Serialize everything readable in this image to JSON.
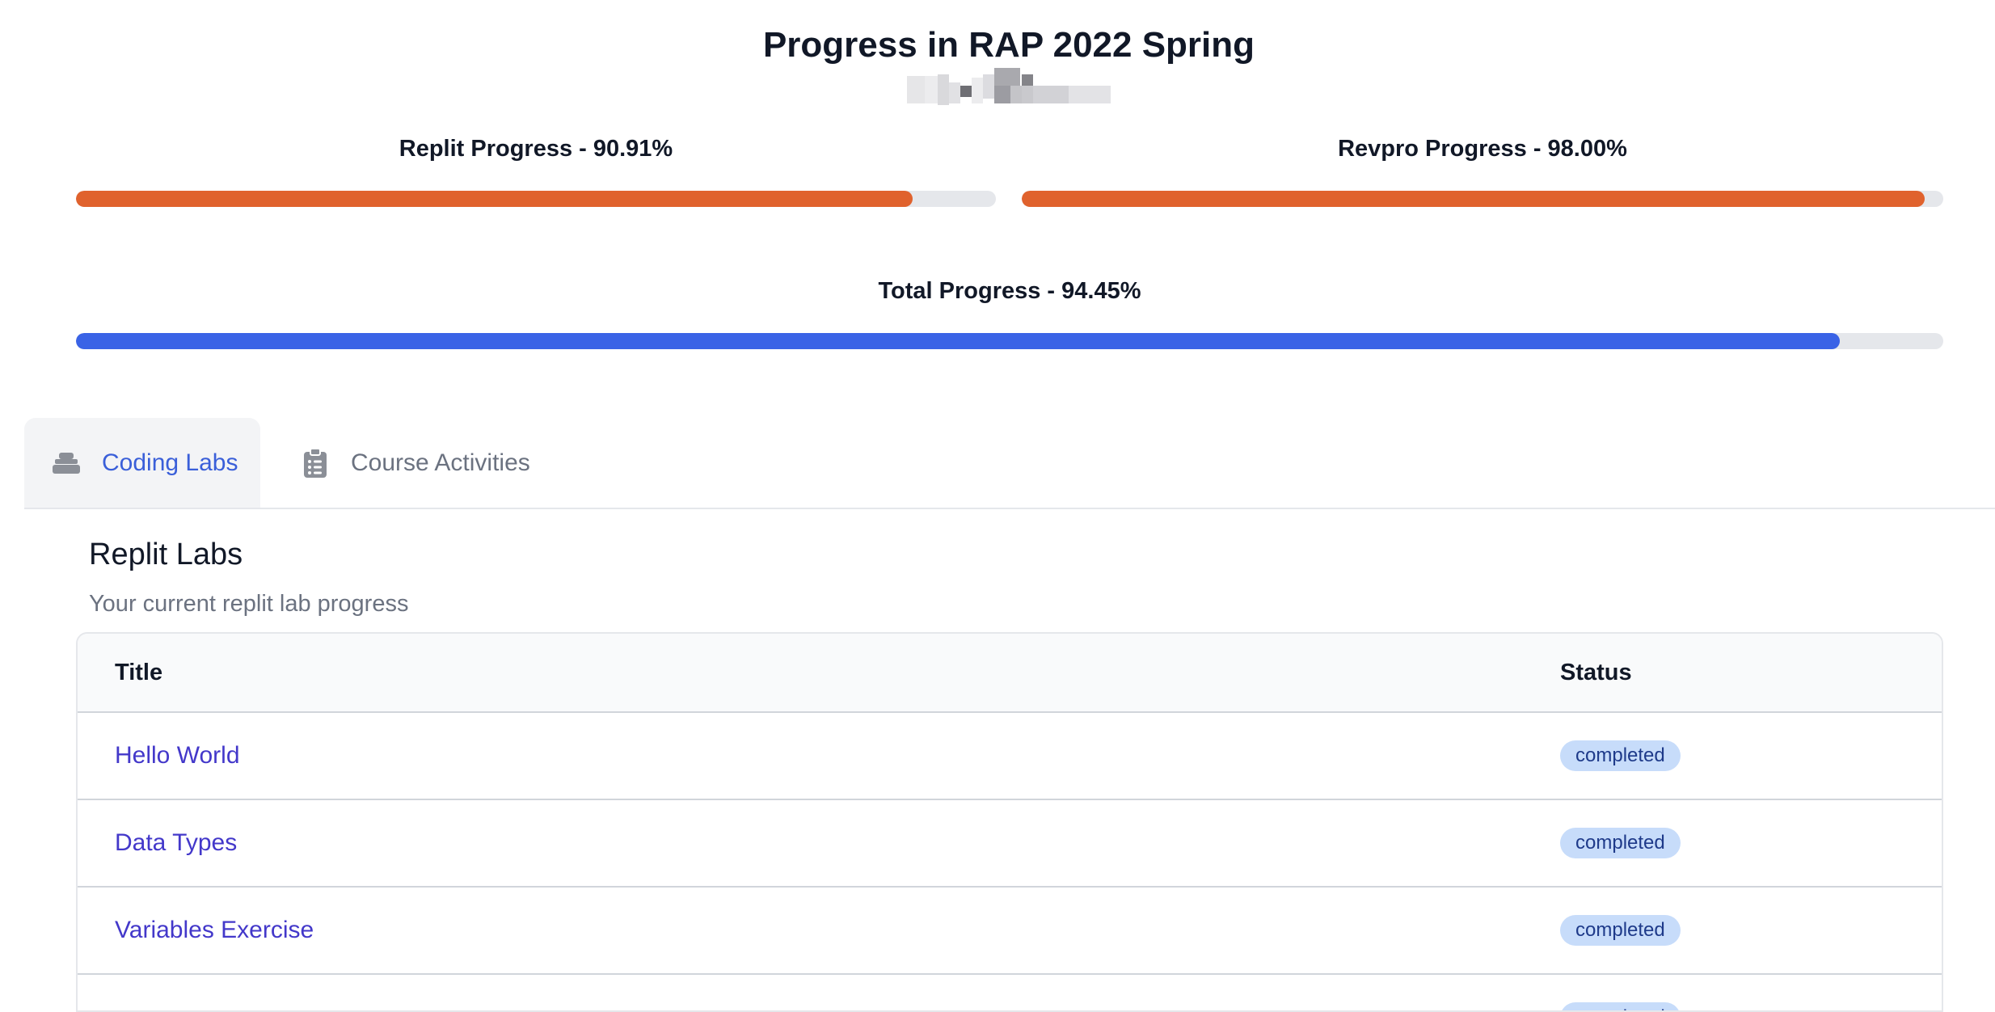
{
  "header": {
    "title": "Progress in RAP 2022 Spring"
  },
  "progress": {
    "replit": {
      "label": "Replit Progress - 90.91%",
      "value": 0.9091,
      "color": "#e0622d"
    },
    "revpro": {
      "label": "Revpro Progress - 98.00%",
      "value": 0.98,
      "color": "#e0622d"
    },
    "total": {
      "label": "Total Progress - 94.45%",
      "value": 0.9445,
      "color": "#3a63e6"
    },
    "track_color": "#e5e7eb"
  },
  "tabs": [
    {
      "label": "Coding Labs",
      "icon": "stack-icon",
      "active": true
    },
    {
      "label": "Course Activities",
      "icon": "clipboard-list-icon",
      "active": false
    }
  ],
  "section": {
    "title": "Replit Labs",
    "subtitle": "Your current replit lab progress"
  },
  "table": {
    "columns": [
      "Title",
      "Status"
    ],
    "rows": [
      {
        "title": "Hello World",
        "status": "completed"
      },
      {
        "title": "Data Types",
        "status": "completed"
      },
      {
        "title": "Variables Exercise",
        "status": "completed"
      },
      {
        "title": "",
        "status": "completed"
      }
    ]
  },
  "colors": {
    "accent": "#3a5fd9",
    "link": "#4338ca",
    "badge_bg": "#c7dcfa",
    "badge_text": "#1e3a8a"
  }
}
